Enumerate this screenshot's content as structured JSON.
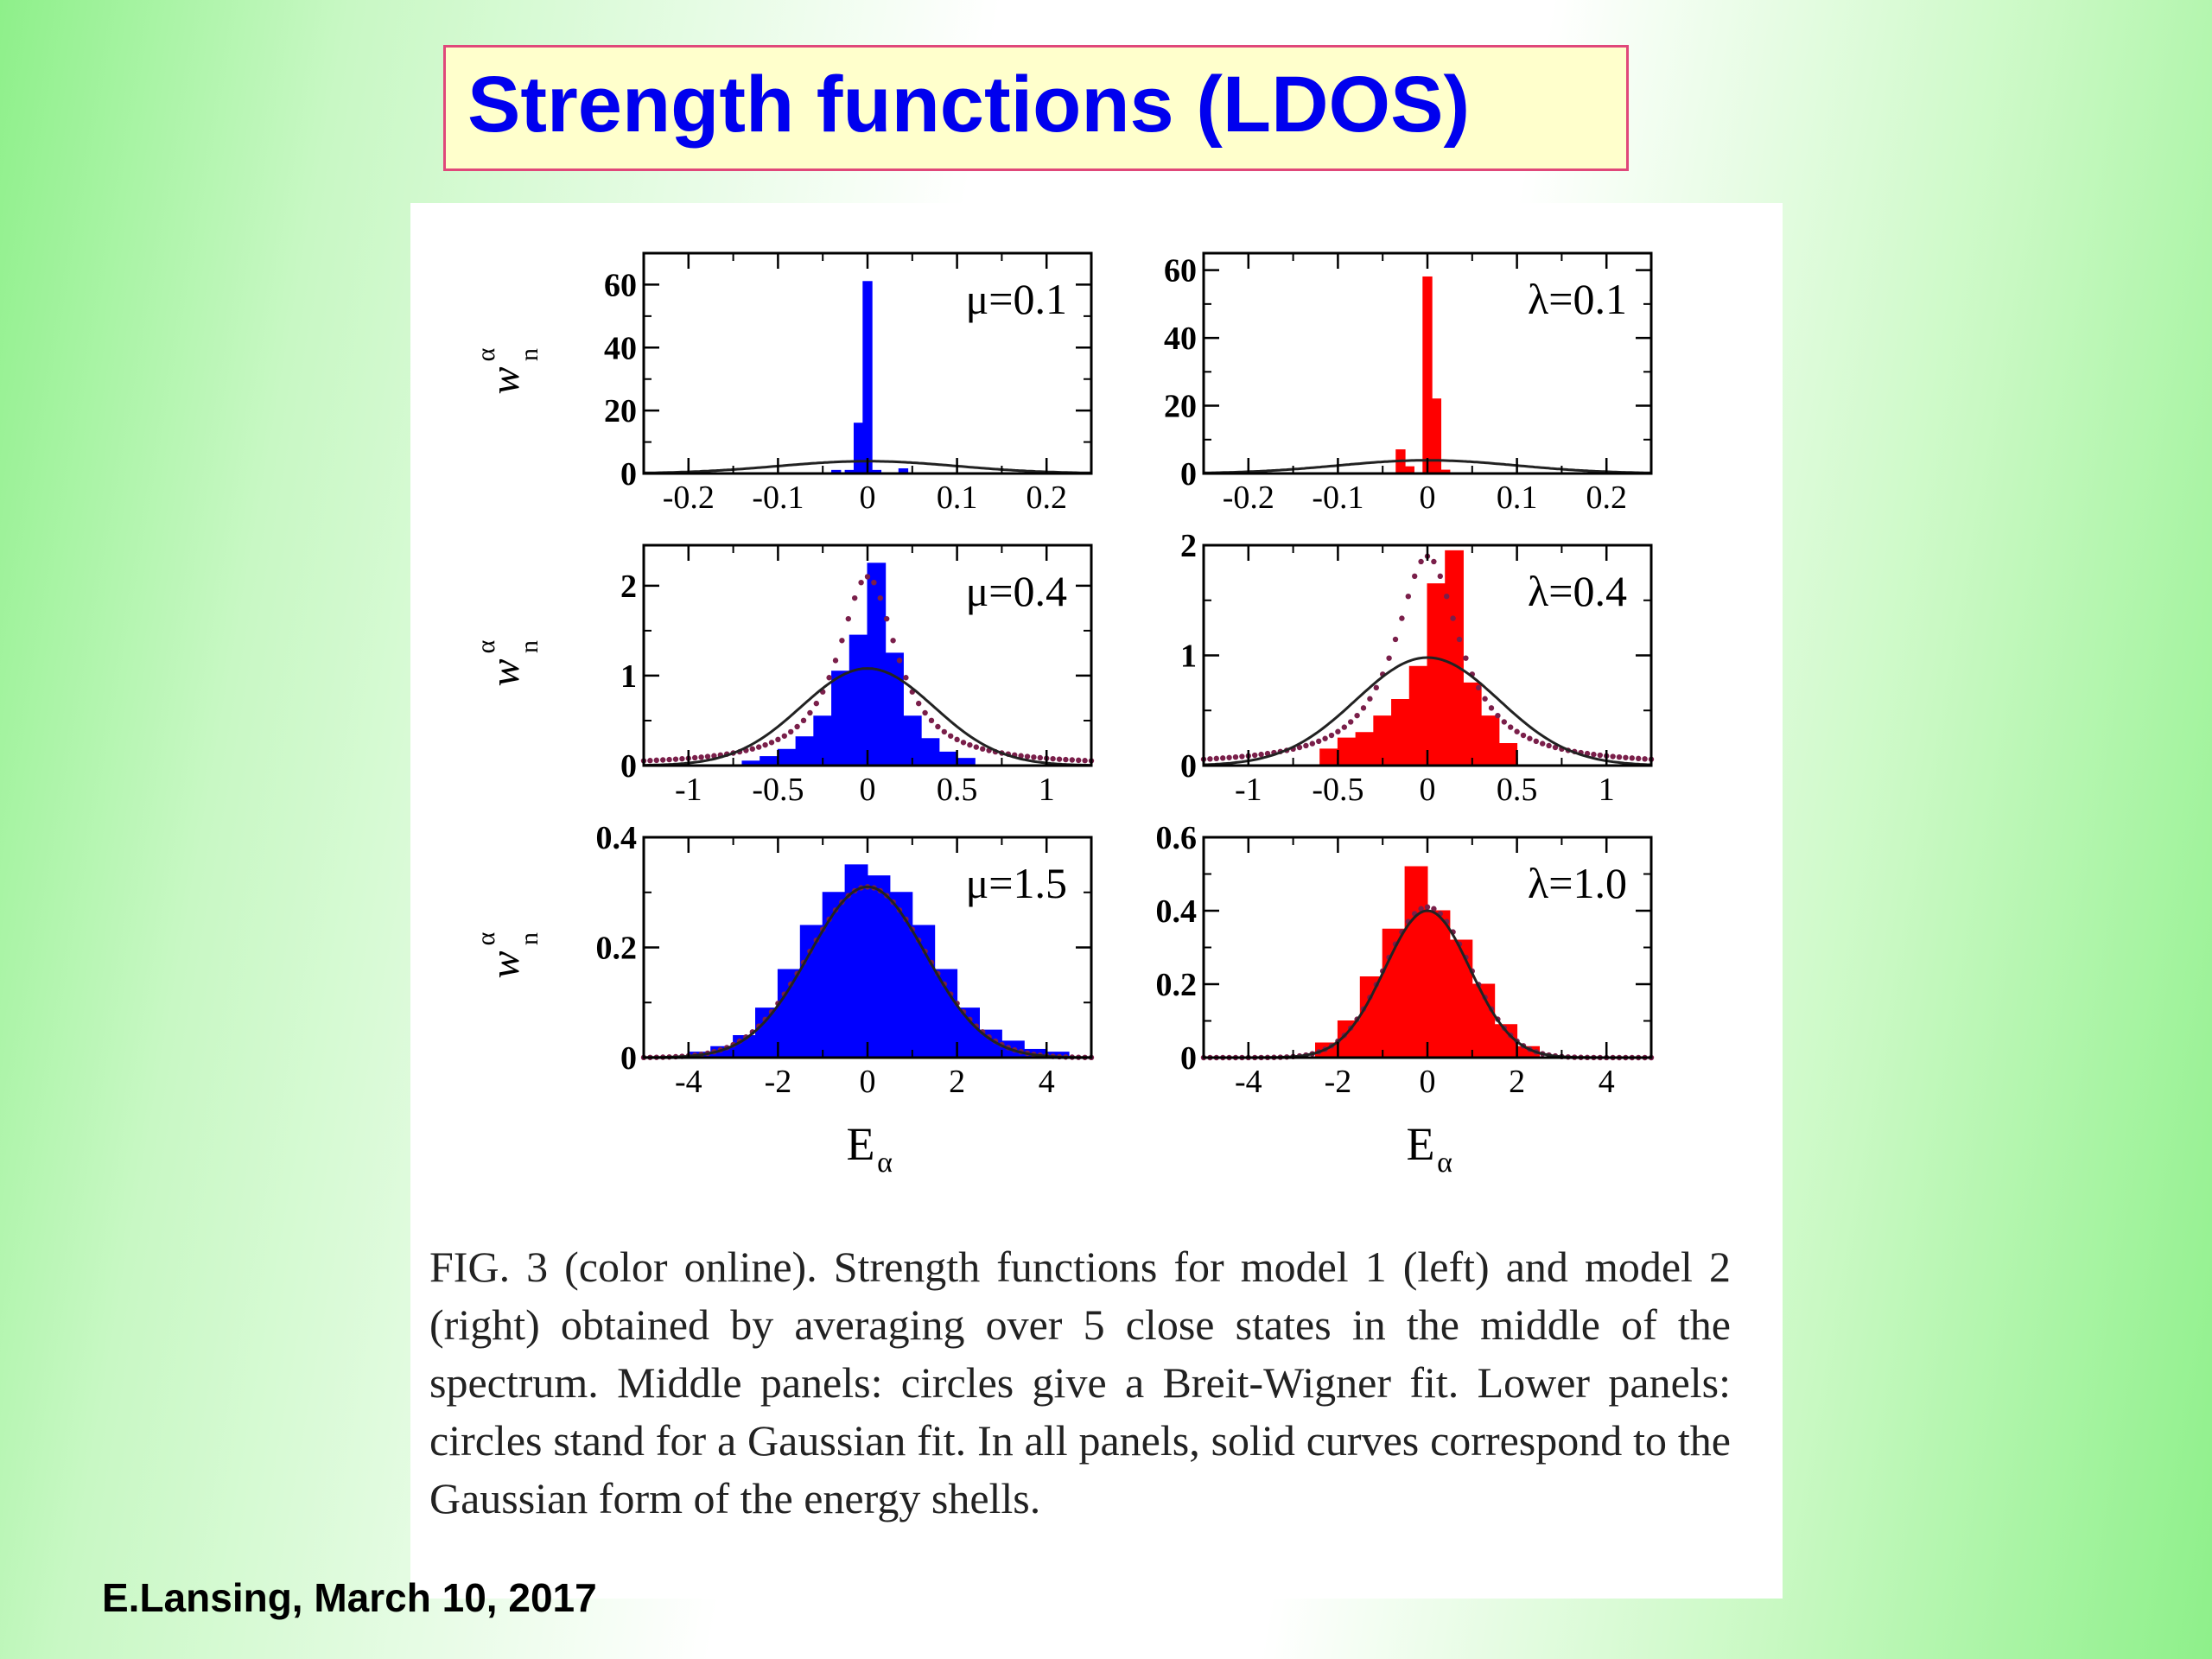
{
  "slide": {
    "title": "Strength functions (LDOS)",
    "footer": "E.Lansing, March 10, 2017",
    "colors": {
      "title_text": "#0000ee",
      "title_bg": "#ffffcc",
      "title_border": "#e0487a",
      "background_accent": "#8ef08a"
    }
  },
  "figure": {
    "caption": "FIG. 3 (color online).   Strength functions for model 1 (left) and model 2 (right) obtained by averaging over 5 close states in the middle of the spectrum. Middle panels: circles give a Breit-Wigner fit. Lower panels: circles stand for a Gaussian fit. In all panels, solid curves correspond to the Gaussian form of the energy shells.",
    "ylabel_main": "w",
    "ylabel_sub": "n",
    "ylabel_sup": "α",
    "xlabel_main": "E",
    "xlabel_sub": "α"
  },
  "chart_data": [
    {
      "type": "bar",
      "panel": "top-left",
      "label": "μ=0.1",
      "color": "#0000ff",
      "xlim": [
        -0.25,
        0.25
      ],
      "ylim": [
        0,
        70
      ],
      "xticks": [
        -0.2,
        -0.1,
        0,
        0.1,
        0.2
      ],
      "xticklabels": [
        "-0.2",
        "-0.1",
        "0",
        "0.1",
        "0.2"
      ],
      "yticks": [
        0,
        20,
        40,
        60
      ],
      "yticklabels": [
        "0",
        "20",
        "40",
        "60"
      ],
      "ylabel": true,
      "xlabel": false,
      "bars": {
        "x": [
          -0.035,
          -0.02,
          -0.01,
          0,
          0.01,
          0.04
        ],
        "height": [
          1,
          1,
          16,
          61,
          1,
          1.5
        ],
        "width": 0.01
      },
      "gaussian": {
        "amp": 3.9,
        "sigma": 0.1
      },
      "fit": null
    },
    {
      "type": "bar",
      "panel": "top-right",
      "label": "λ=0.1",
      "color": "#ff0000",
      "xlim": [
        -0.25,
        0.25
      ],
      "ylim": [
        0,
        65
      ],
      "xticks": [
        -0.2,
        -0.1,
        0,
        0.1,
        0.2
      ],
      "xticklabels": [
        "-0.2",
        "-0.1",
        "0",
        "0.1",
        "0.2"
      ],
      "yticks": [
        0,
        20,
        40,
        60
      ],
      "yticklabels": [
        "0",
        "20",
        "40",
        "60"
      ],
      "ylabel": false,
      "xlabel": false,
      "bars": {
        "x": [
          -0.03,
          -0.02,
          0,
          0.01,
          0.02
        ],
        "height": [
          7,
          2,
          58,
          22,
          1
        ],
        "width": 0.01
      },
      "gaussian": {
        "amp": 3.9,
        "sigma": 0.1
      },
      "fit": null
    },
    {
      "type": "bar",
      "panel": "mid-left",
      "label": "μ=0.4",
      "color": "#0000ff",
      "xlim": [
        -1.25,
        1.25
      ],
      "ylim": [
        0,
        2.45
      ],
      "xticks": [
        -1,
        -0.5,
        0,
        0.5,
        1
      ],
      "xticklabels": [
        "-1",
        "-0.5",
        "0",
        "0.5",
        "1"
      ],
      "yticks": [
        0,
        1,
        2
      ],
      "yticklabels": [
        "0",
        "1",
        "2"
      ],
      "ylabel": true,
      "xlabel": false,
      "bars": {
        "x": [
          -0.65,
          -0.55,
          -0.45,
          -0.35,
          -0.25,
          -0.15,
          -0.05,
          0.05,
          0.15,
          0.25,
          0.35,
          0.45,
          0.55
        ],
        "height": [
          0.05,
          0.1,
          0.18,
          0.32,
          0.55,
          1.05,
          1.45,
          2.25,
          1.25,
          0.55,
          0.3,
          0.15,
          0.08
        ],
        "width": 0.1
      },
      "gaussian": {
        "amp": 1.08,
        "sigma": 0.37
      },
      "fit": {
        "kind": "Breit-Wigner",
        "amp": 2.1,
        "gamma": 0.2
      }
    },
    {
      "type": "bar",
      "panel": "mid-right",
      "label": "λ=0.4",
      "color": "#ff0000",
      "xlim": [
        -1.25,
        1.25
      ],
      "ylim": [
        0,
        2
      ],
      "xticks": [
        -1,
        -0.5,
        0,
        0.5,
        1
      ],
      "xticklabels": [
        "-1",
        "-0.5",
        "0",
        "0.5",
        "1"
      ],
      "yticks": [
        0,
        1,
        2
      ],
      "yticklabels": [
        "0",
        "1",
        "2"
      ],
      "ylabel": false,
      "xlabel": false,
      "bars": {
        "x": [
          -0.55,
          -0.45,
          -0.35,
          -0.25,
          -0.15,
          -0.05,
          0.05,
          0.15,
          0.25,
          0.35,
          0.45
        ],
        "height": [
          0.15,
          0.25,
          0.3,
          0.45,
          0.6,
          0.9,
          1.65,
          1.95,
          0.75,
          0.45,
          0.2
        ],
        "width": 0.1
      },
      "gaussian": {
        "amp": 0.98,
        "sigma": 0.4
      },
      "fit": {
        "kind": "Breit-Wigner",
        "amp": 1.9,
        "gamma": 0.22
      }
    },
    {
      "type": "bar",
      "panel": "bottom-left",
      "label": "μ=1.5",
      "color": "#0000ff",
      "xlim": [
        -5,
        5
      ],
      "ylim": [
        0,
        0.4
      ],
      "xticks": [
        -4,
        -2,
        0,
        2,
        4
      ],
      "xticklabels": [
        "-4",
        "-2",
        "0",
        "2",
        "4"
      ],
      "yticks": [
        0,
        0.2,
        0.4
      ],
      "yticklabels": [
        "0",
        "0.2",
        "0.4"
      ],
      "ylabel": true,
      "xlabel": true,
      "bars": {
        "x": [
          -3.75,
          -3.25,
          -2.75,
          -2.25,
          -1.75,
          -1.25,
          -0.75,
          -0.25,
          0.25,
          0.75,
          1.25,
          1.75,
          2.25,
          2.75,
          3.25,
          3.75,
          4.25
        ],
        "height": [
          0.01,
          0.02,
          0.04,
          0.09,
          0.16,
          0.24,
          0.3,
          0.35,
          0.33,
          0.3,
          0.24,
          0.16,
          0.09,
          0.05,
          0.03,
          0.015,
          0.01
        ],
        "width": 0.5
      },
      "gaussian": {
        "amp": 0.31,
        "sigma": 1.3
      },
      "fit": {
        "kind": "Gaussian",
        "amp": 0.31,
        "sigma": 1.32
      }
    },
    {
      "type": "bar",
      "panel": "bottom-right",
      "label": "λ=1.0",
      "color": "#ff0000",
      "xlim": [
        -5,
        5
      ],
      "ylim": [
        0,
        0.6
      ],
      "xticks": [
        -4,
        -2,
        0,
        2,
        4
      ],
      "xticklabels": [
        "-4",
        "-2",
        "0",
        "2",
        "4"
      ],
      "yticks": [
        0,
        0.2,
        0.4,
        0.6
      ],
      "yticklabels": [
        "0",
        "0.2",
        "0.4",
        "0.6"
      ],
      "ylabel": false,
      "xlabel": true,
      "bars": {
        "x": [
          -2.25,
          -1.75,
          -1.25,
          -0.75,
          -0.25,
          0.25,
          0.75,
          1.25,
          1.75,
          2.25
        ],
        "height": [
          0.04,
          0.1,
          0.22,
          0.35,
          0.52,
          0.4,
          0.32,
          0.2,
          0.09,
          0.03
        ],
        "width": 0.5
      },
      "gaussian": {
        "amp": 0.4,
        "sigma": 0.95
      },
      "fit": {
        "kind": "Gaussian",
        "amp": 0.41,
        "sigma": 0.95
      }
    }
  ]
}
